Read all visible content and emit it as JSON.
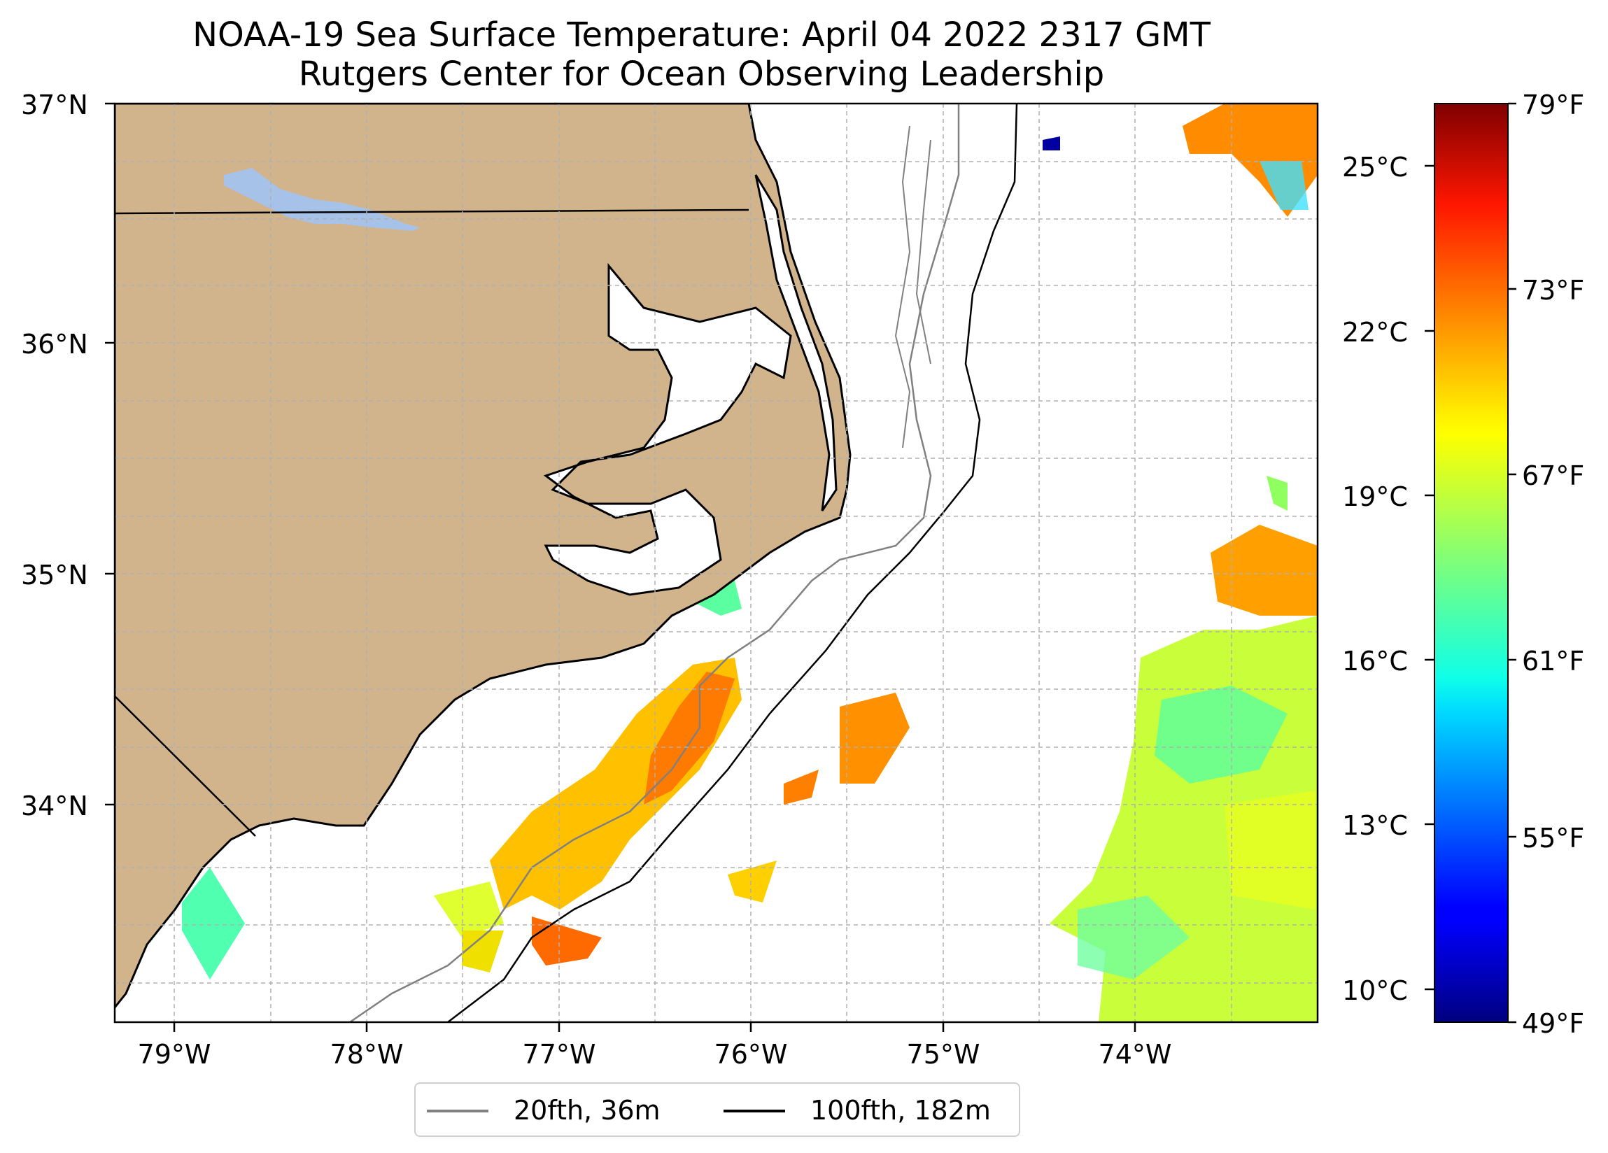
{
  "title": {
    "line1": "NOAA-19 Sea Surface Temperature: April 04 2022 2317 GMT",
    "line2": "Rutgers Center for Ocean Observing Leadership"
  },
  "axes": {
    "lat_labels": [
      "37°N",
      "36°N",
      "35°N",
      "34°N"
    ],
    "lon_labels": [
      "79°W",
      "78°W",
      "77°W",
      "76°W",
      "75°W",
      "74°W"
    ]
  },
  "colorbar": {
    "celsius_labels": [
      "25°C",
      "22°C",
      "19°C",
      "16°C",
      "13°C",
      "10°C"
    ],
    "fahrenheit_labels": [
      "79°F",
      "73°F",
      "67°F",
      "61°F",
      "55°F",
      "49°F"
    ],
    "range_f": [
      49,
      79
    ],
    "colormap": "jet"
  },
  "legend": {
    "items": [
      {
        "label": "20fth, 36m",
        "color": "#808080"
      },
      {
        "label": "100fth, 182m",
        "color": "#000000"
      }
    ]
  },
  "colors": {
    "land": "#d2b48c",
    "lake": "#a6c2e8",
    "gridline": "#b0b0b0",
    "isobath_20fth": "#808080",
    "isobath_100fth": "#000000"
  }
}
